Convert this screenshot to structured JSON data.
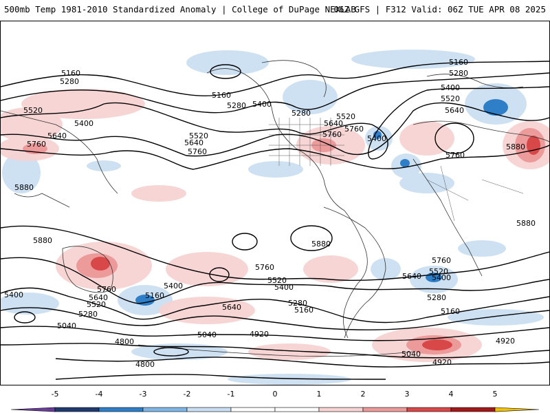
{
  "header": {
    "title_left": "500mb Temp 1981-2010 Standardized Anomaly | College of DuPage NEXLAB",
    "title_right": "06Z GFS | F312 Valid: 06Z TUE APR 08 2025"
  },
  "contour_labels": [
    "5160",
    "5280",
    "5400",
    "5520",
    "5640",
    "5760",
    "5880",
    "5040",
    "4920",
    "4800"
  ],
  "colorbar": {
    "ticks": [
      "-5",
      "-4",
      "-3",
      "-2",
      "-1",
      "0",
      "1",
      "2",
      "3",
      "4",
      "5"
    ],
    "colors": {
      "neg5": "#6a3d9a",
      "neg4": "#1f3a6e",
      "neg3": "#2f7fc8",
      "neg2": "#7fb6e6",
      "neg1": "#c9def2",
      "zero": "#ffffff",
      "pos1": "#f7d3d3",
      "pos2": "#ec9a9a",
      "pos3": "#d84848",
      "pos4": "#a31919",
      "pos5": "#f2c200"
    }
  }
}
